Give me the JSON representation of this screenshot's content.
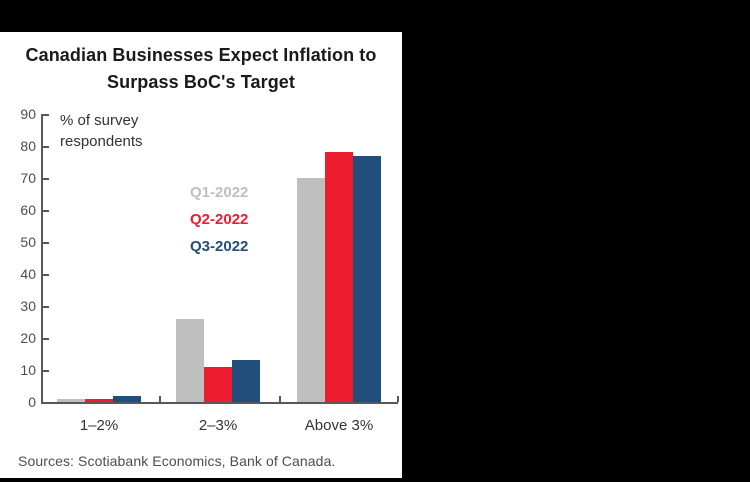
{
  "frame": {
    "background_color": "#000000",
    "panel_color": "#ffffff"
  },
  "title": {
    "line1": "Canadian Businesses Expect Inflation to",
    "line2": "Surpass BoC's Target"
  },
  "axis_note": {
    "line1": "% of survey",
    "line2": "respondents"
  },
  "source": "Sources: Scotiabank Economics, Bank of Canada.",
  "chart_data": {
    "type": "bar",
    "title": "Canadian Businesses Expect Inflation to Surpass BoC's Target",
    "ylabel": "% of survey respondents",
    "xlabel": "",
    "categories": [
      "1–2%",
      "2–3%",
      "Above 3%"
    ],
    "series": [
      {
        "name": "Q1-2022",
        "color": "#bfbfbf",
        "values": [
          1,
          26,
          70
        ]
      },
      {
        "name": "Q2-2022",
        "color": "#ed1c2e",
        "values": [
          1,
          11,
          78
        ]
      },
      {
        "name": "Q3-2022",
        "color": "#224e7c",
        "values": [
          2,
          13,
          77
        ]
      }
    ],
    "ylim": [
      0,
      90
    ],
    "yticks": [
      0,
      10,
      20,
      30,
      40,
      50,
      60,
      70,
      80,
      90
    ],
    "grid": false,
    "legend_position": "inside-center",
    "axis_color": "#58585a"
  }
}
